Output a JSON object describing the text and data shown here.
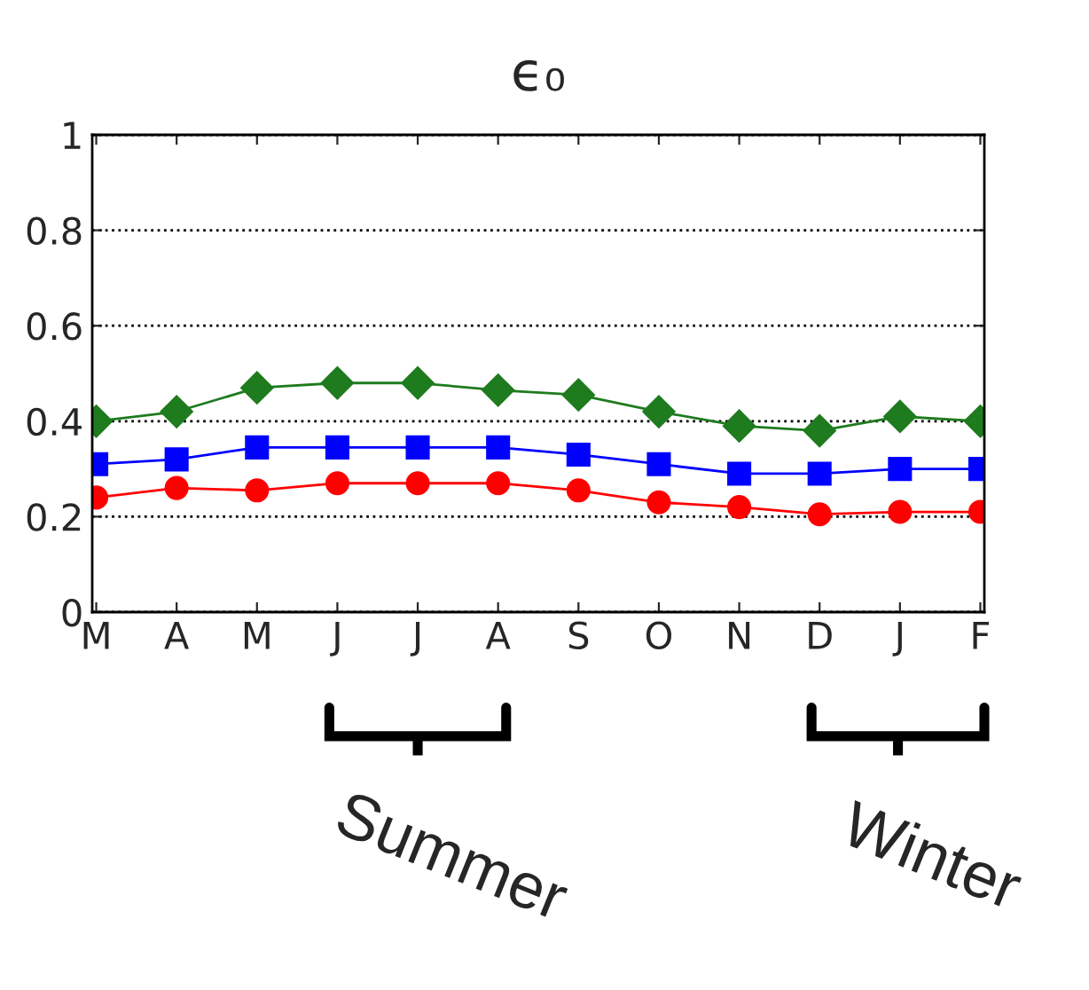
{
  "chart_data": {
    "type": "line",
    "title": "ϵ₀",
    "categories": [
      "M",
      "A",
      "M",
      "J",
      "J",
      "A",
      "S",
      "O",
      "N",
      "D",
      "J",
      "F"
    ],
    "series": [
      {
        "color": "#1e7b1e",
        "marker": "diamond",
        "values": [
          0.4,
          0.42,
          0.47,
          0.48,
          0.48,
          0.465,
          0.455,
          0.42,
          0.39,
          0.38,
          0.41,
          0.4
        ]
      },
      {
        "color": "#0000ff",
        "marker": "square",
        "values": [
          0.31,
          0.32,
          0.345,
          0.345,
          0.345,
          0.345,
          0.33,
          0.31,
          0.29,
          0.29,
          0.3,
          0.3
        ]
      },
      {
        "color": "#ff0000",
        "marker": "circle",
        "values": [
          0.24,
          0.26,
          0.255,
          0.27,
          0.27,
          0.27,
          0.255,
          0.23,
          0.22,
          0.205,
          0.21,
          0.21
        ]
      }
    ],
    "ylim": [
      0,
      1
    ],
    "yticks": [
      0,
      0.2,
      0.4,
      0.6,
      0.8,
      1
    ],
    "grid": "y",
    "line_style": "solid",
    "annotations": [
      "Summer",
      "Winter"
    ]
  }
}
